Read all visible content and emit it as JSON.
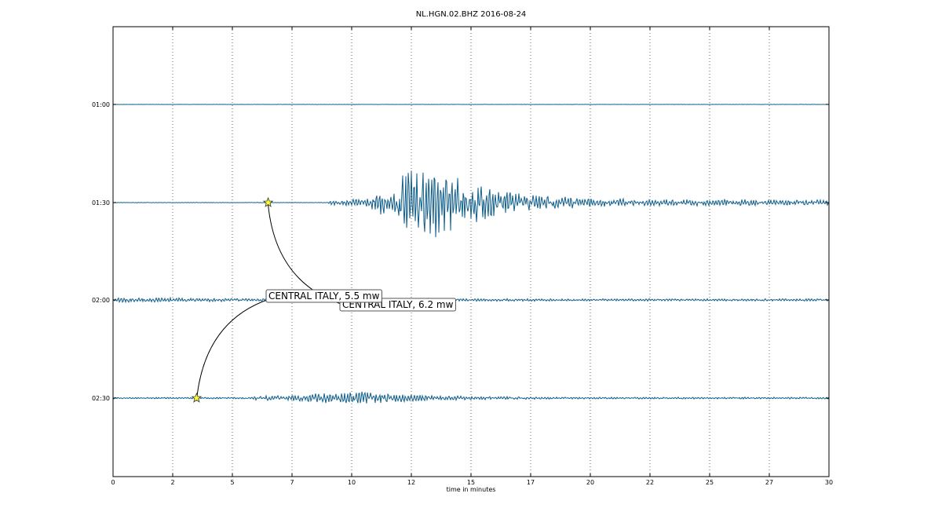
{
  "chart_data": {
    "type": "line",
    "title": "NL.HGN.02.BHZ 2016-08-24",
    "xlabel": "time in minutes",
    "ylabel": "",
    "xlim": [
      0,
      30
    ],
    "x_tick_values": [
      0,
      2.5,
      5,
      7.5,
      10,
      12.5,
      15,
      17.5,
      20,
      22.5,
      25,
      27.5,
      30
    ],
    "x_tick_labels": [
      "0",
      "2",
      "5",
      "7",
      "10",
      "12",
      "15",
      "17",
      "20",
      "22",
      "25",
      "27",
      "30"
    ],
    "y_tick_labels": [
      "01:00",
      "01:30",
      "02:00",
      "02:30"
    ],
    "grid": "vertical dotted",
    "line_color": "#0d5c8a",
    "marker_color": "#ffff33",
    "series": [
      {
        "row": "01:00",
        "envelope": [
          [
            0,
            0.2
          ],
          [
            30,
            0.2
          ]
        ]
      },
      {
        "row": "01:30",
        "envelope": [
          [
            0,
            0.3
          ],
          [
            9.0,
            0.3
          ],
          [
            9.1,
            3.5
          ],
          [
            10.5,
            5
          ],
          [
            11.0,
            12
          ],
          [
            11.8,
            30
          ],
          [
            12.2,
            42
          ],
          [
            12.8,
            40
          ],
          [
            13.5,
            52
          ],
          [
            14.2,
            40
          ],
          [
            15.2,
            28
          ],
          [
            16.0,
            18
          ],
          [
            17.0,
            14
          ],
          [
            18.0,
            10
          ],
          [
            19.0,
            8
          ],
          [
            20.0,
            6
          ],
          [
            22.0,
            5
          ],
          [
            24.0,
            4.5
          ],
          [
            27.0,
            4
          ],
          [
            30.0,
            4
          ]
        ]
      },
      {
        "row": "02:00",
        "envelope": [
          [
            0,
            3.5
          ],
          [
            1.5,
            3
          ],
          [
            3.0,
            2.5
          ],
          [
            5.0,
            2
          ],
          [
            10.0,
            1.8
          ],
          [
            15.0,
            1.8
          ],
          [
            20.0,
            1.5
          ],
          [
            30.0,
            1.5
          ]
        ]
      },
      {
        "row": "02:30",
        "envelope": [
          [
            0,
            1
          ],
          [
            5.8,
            1
          ],
          [
            5.9,
            2.5
          ],
          [
            7.5,
            4
          ],
          [
            8.5,
            6
          ],
          [
            9.5,
            8
          ],
          [
            10.5,
            9
          ],
          [
            11.5,
            6
          ],
          [
            12.5,
            5
          ],
          [
            14.0,
            3
          ],
          [
            16.0,
            2
          ],
          [
            18.0,
            1.5
          ],
          [
            20.0,
            1.2
          ],
          [
            30.0,
            1.2
          ]
        ]
      }
    ],
    "events": [
      {
        "label": "CENTRAL ITALY, 6.2 mw",
        "row": "01:30",
        "x": 6.5
      },
      {
        "label": "CENTRAL ITALY, 5.5 mw",
        "row": "02:30",
        "x": 3.5
      }
    ]
  }
}
